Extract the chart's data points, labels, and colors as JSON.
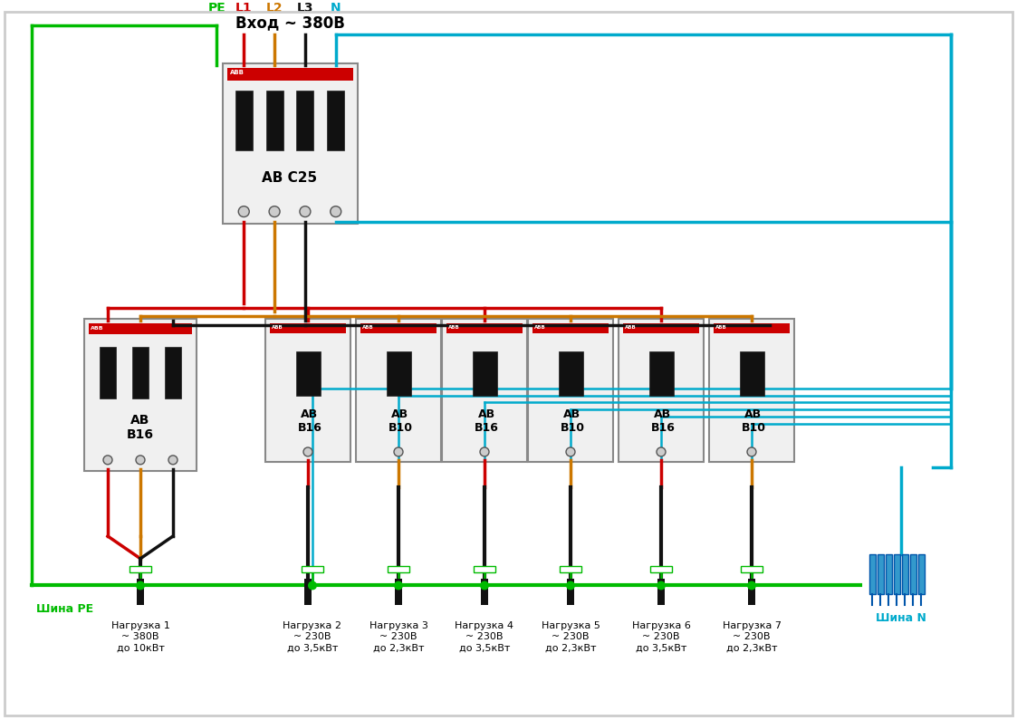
{
  "title": "Вход ~ 380В",
  "bg_color": "#ffffff",
  "wire_colors": {
    "PE": "#00bb00",
    "L1": "#cc0000",
    "L2": "#cc7700",
    "L3": "#111111",
    "N": "#00aacc"
  },
  "label_colors": {
    "PE": "#00bb00",
    "L1": "#cc0000",
    "L2": "#cc7700",
    "L3": "#111111",
    "N": "#00aacc"
  },
  "sp_labels": [
    "АВ\nВ16",
    "АВ\nВ10",
    "АВ\nВ16",
    "АВ\nВ10",
    "АВ\nВ16",
    "АВ\nВ10"
  ],
  "load_labels": [
    "Нагрузка 1\n~ 380В\nдо 10кВт",
    "Нагрузка 2\n~ 230В\nдо 3,5кВт",
    "Нагрузка 3\n~ 230В\nдо 2,3кВт",
    "Нагрузка 4\n~ 230В\nдо 3,5кВт",
    "Нагрузка 5\n~ 230В\nдо 2,3кВт",
    "Нагрузка 6\n~ 230В\nдо 3,5кВт",
    "Нагрузка 7\n~ 230В\nдо 2,3кВт"
  ],
  "shina_PE": "Шина PE",
  "shina_N": "Шина N",
  "lw": 2.5,
  "lw_thin": 1.8
}
